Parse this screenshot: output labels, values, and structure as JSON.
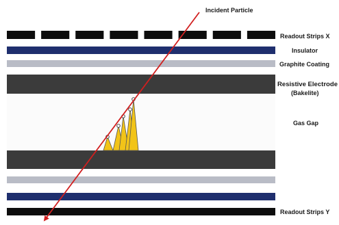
{
  "labels": {
    "incident_particle": "Incident Particle",
    "readout_strips_x": "Readout Strips X",
    "insulator": "Insulator",
    "graphite_coating": "Graphite Coating",
    "resistive_electrode_line1": "Resistive Electrode",
    "resistive_electrode_line2": "(Bakelite)",
    "gas_gap": "Gas Gap",
    "readout_strips_y": "Readout Strips Y"
  },
  "colors": {
    "strip_black": "#0d0d0d",
    "insulator_blue": "#1f2f6e",
    "graphite_gray": "#b9bcc6",
    "electrode_dark": "#3b3b3b",
    "gas_gap_fill": "#fbfbfb",
    "particle_track": "#d11f1f",
    "avalanche_yellow": "#f2c418",
    "avalanche_outline": "#555555"
  },
  "readout_strips_x_count": 8
}
